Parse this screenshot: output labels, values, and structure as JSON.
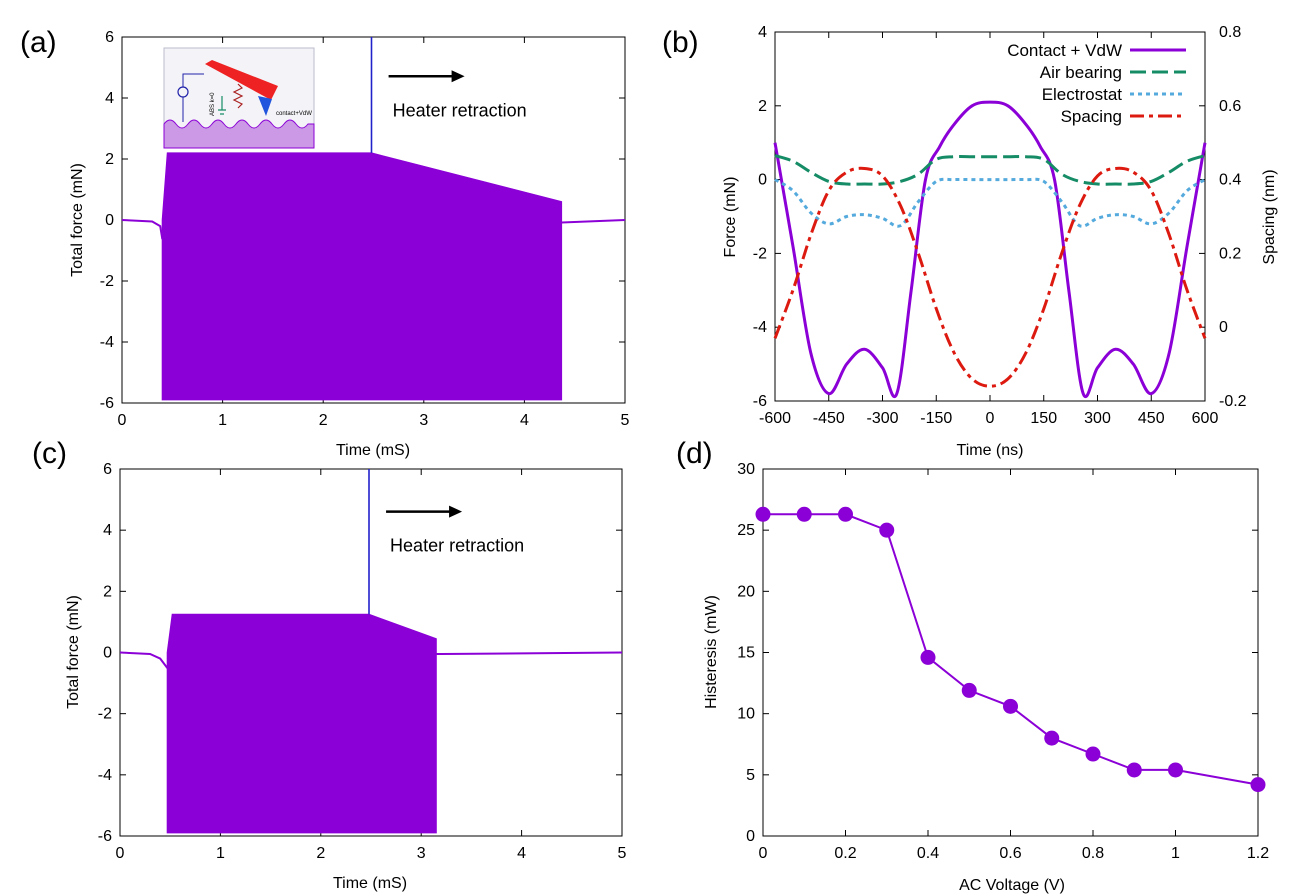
{
  "figure_title": "",
  "colors": {
    "purple": "#8B00D6",
    "blue_line": "#2222CC",
    "green": "#168C66",
    "light_blue": "#55AADD",
    "red": "#DD1A10",
    "black": "#000000"
  },
  "chart_data": [
    {
      "id": "a",
      "panel_label": "(a)",
      "type": "line",
      "title": "",
      "xlabel": "Time  (mS)",
      "ylabel": "Total force (mN)",
      "xlim": [
        0,
        5
      ],
      "ylim": [
        -6,
        6
      ],
      "xticks": [
        0,
        1,
        2,
        3,
        4,
        5
      ],
      "yticks": [
        -6,
        -4,
        -2,
        0,
        2,
        4,
        6
      ],
      "series": [
        {
          "name": "Total force",
          "color": "#8B00D6",
          "x": [
            0,
            0.3,
            0.38,
            0.4,
            5
          ],
          "y": [
            0,
            -0.05,
            -0.2,
            -0.6,
            0
          ]
        },
        {
          "name": "Oscillation envelope",
          "color": "#8B00D6",
          "x": [
            0.4,
            0.45,
            2.48,
            4.37
          ],
          "upper": [
            0.0,
            2.2,
            2.2,
            0.6
          ],
          "lower": [
            -5.9,
            -5.9,
            -5.9,
            -5.9
          ]
        },
        {
          "name": "Heater retraction marker",
          "color": "#2222CC",
          "x": [
            2.48,
            2.48
          ],
          "y": [
            2.2,
            6
          ]
        }
      ],
      "annotations": [
        {
          "text": "Heater retraction",
          "x": 2.65,
          "y": 3.4
        }
      ],
      "inset": {
        "label": "contact+VdW",
        "side_label": "ABS k=0"
      }
    },
    {
      "id": "b",
      "panel_label": "(b)",
      "type": "line",
      "title": "",
      "xlabel": "Time  (ns)",
      "ylabel": "Force  (mN)",
      "y2label": "Spacing  (nm)",
      "xlim": [
        -600,
        600
      ],
      "ylim": [
        -6,
        4
      ],
      "y2lim": [
        -0.2,
        0.8
      ],
      "xticks": [
        -600,
        -450,
        -300,
        -150,
        0,
        150,
        300,
        450,
        600
      ],
      "yticks": [
        -6,
        -4,
        -2,
        0,
        2,
        4
      ],
      "y2ticks": [
        -0.2,
        0,
        0.2,
        0.4,
        0.6,
        0.8
      ],
      "legend_position": "top-right",
      "series": [
        {
          "name": "Contact + VdW",
          "color": "#8B00D6",
          "style": "solid",
          "axis": "left",
          "x": [
            -600,
            -550,
            -500,
            -450,
            -400,
            -350,
            -300,
            -260,
            -220,
            -180,
            -140,
            -100,
            -50,
            0,
            50,
            100,
            140,
            180,
            220,
            260,
            300,
            350,
            400,
            450,
            500,
            550,
            600
          ],
          "y": [
            1.0,
            -1.8,
            -4.7,
            -5.8,
            -5.0,
            -4.6,
            -5.1,
            -5.8,
            -3.0,
            0.0,
            0.9,
            1.5,
            2.0,
            2.1,
            2.0,
            1.5,
            0.9,
            0.0,
            -3.0,
            -5.8,
            -5.1,
            -4.6,
            -5.0,
            -5.8,
            -4.7,
            -1.8,
            1.0
          ]
        },
        {
          "name": "Air bearing",
          "color": "#168C66",
          "style": "dash",
          "axis": "left",
          "x": [
            -600,
            -550,
            -500,
            -450,
            -400,
            -350,
            -300,
            -250,
            -200,
            -150,
            -100,
            -50,
            0,
            50,
            100,
            150,
            200,
            250,
            300,
            350,
            400,
            450,
            500,
            550,
            600
          ],
          "y": [
            0.65,
            0.5,
            0.2,
            -0.05,
            -0.12,
            -0.12,
            -0.12,
            -0.05,
            0.15,
            0.55,
            0.62,
            0.62,
            0.62,
            0.62,
            0.62,
            0.55,
            0.15,
            -0.05,
            -0.12,
            -0.12,
            -0.12,
            -0.05,
            0.2,
            0.5,
            0.65
          ]
        },
        {
          "name": "Electrostat",
          "color": "#55AADD",
          "style": "dot",
          "axis": "left",
          "x": [
            -600,
            -550,
            -500,
            -450,
            -400,
            -350,
            -300,
            -250,
            -200,
            -150,
            -100,
            -50,
            0,
            50,
            100,
            150,
            200,
            250,
            300,
            350,
            400,
            450,
            500,
            550,
            600
          ],
          "y": [
            0.0,
            -0.3,
            -0.9,
            -1.2,
            -1.0,
            -0.95,
            -1.05,
            -1.25,
            -0.6,
            -0.05,
            0.0,
            0.0,
            0.0,
            0.0,
            0.0,
            -0.05,
            -0.6,
            -1.25,
            -1.05,
            -0.95,
            -1.0,
            -1.2,
            -0.9,
            -0.3,
            0.0
          ]
        },
        {
          "name": "Spacing",
          "color": "#DD1A10",
          "style": "dashdot",
          "axis": "right",
          "x": [
            -600,
            -550,
            -500,
            -450,
            -400,
            -350,
            -300,
            -250,
            -200,
            -150,
            -100,
            -50,
            0,
            50,
            100,
            150,
            200,
            250,
            300,
            350,
            400,
            450,
            500,
            550,
            600
          ],
          "y": [
            -0.03,
            0.1,
            0.25,
            0.37,
            0.42,
            0.43,
            0.41,
            0.33,
            0.2,
            0.05,
            -0.07,
            -0.14,
            -0.16,
            -0.14,
            -0.07,
            0.05,
            0.2,
            0.33,
            0.41,
            0.43,
            0.42,
            0.37,
            0.25,
            0.1,
            -0.03
          ]
        }
      ]
    },
    {
      "id": "c",
      "panel_label": "(c)",
      "type": "line",
      "title": "",
      "xlabel": "Time  (mS)",
      "ylabel": "Total force (mN)",
      "xlim": [
        0,
        5
      ],
      "ylim": [
        -6,
        6
      ],
      "xticks": [
        0,
        1,
        2,
        3,
        4,
        5
      ],
      "yticks": [
        -6,
        -4,
        -2,
        0,
        2,
        4,
        6
      ],
      "series": [
        {
          "name": "Total force",
          "color": "#8B00D6",
          "x": [
            0,
            0.3,
            0.4,
            0.47,
            3.15,
            3.2,
            5
          ],
          "y": [
            0,
            -0.05,
            -0.2,
            -0.5,
            -0.05,
            -0.05,
            0
          ]
        },
        {
          "name": "Oscillation envelope",
          "color": "#8B00D6",
          "x": [
            0.47,
            0.52,
            2.48,
            3.15
          ],
          "upper": [
            0.0,
            1.25,
            1.25,
            0.45
          ],
          "lower": [
            -5.9,
            -5.9,
            -5.9,
            -5.9
          ]
        },
        {
          "name": "Heater retraction marker",
          "color": "#2222CC",
          "x": [
            2.48,
            2.48
          ],
          "y": [
            1.25,
            6
          ]
        }
      ],
      "annotations": [
        {
          "text": "Heater retraction",
          "x": 2.65,
          "y": 3.3
        }
      ]
    },
    {
      "id": "d",
      "panel_label": "(d)",
      "type": "line",
      "title": "",
      "xlabel": "AC Voltage  (V)",
      "ylabel": "Histeresis  (mW)",
      "xlim": [
        0,
        1.2
      ],
      "ylim": [
        0,
        30
      ],
      "xticks": [
        0,
        0.2,
        0.4,
        0.6,
        0.8,
        1,
        1.2
      ],
      "yticks": [
        0,
        5,
        10,
        15,
        20,
        25,
        30
      ],
      "series": [
        {
          "name": "Histeresis",
          "color": "#8B00D6",
          "marker": "circle",
          "x": [
            0,
            0.1,
            0.2,
            0.3,
            0.4,
            0.5,
            0.6,
            0.7,
            0.8,
            0.9,
            1.0,
            1.2
          ],
          "y": [
            26.3,
            26.3,
            26.3,
            25.0,
            14.6,
            11.9,
            10.6,
            8.0,
            6.7,
            5.4,
            5.4,
            4.2
          ]
        }
      ]
    }
  ]
}
